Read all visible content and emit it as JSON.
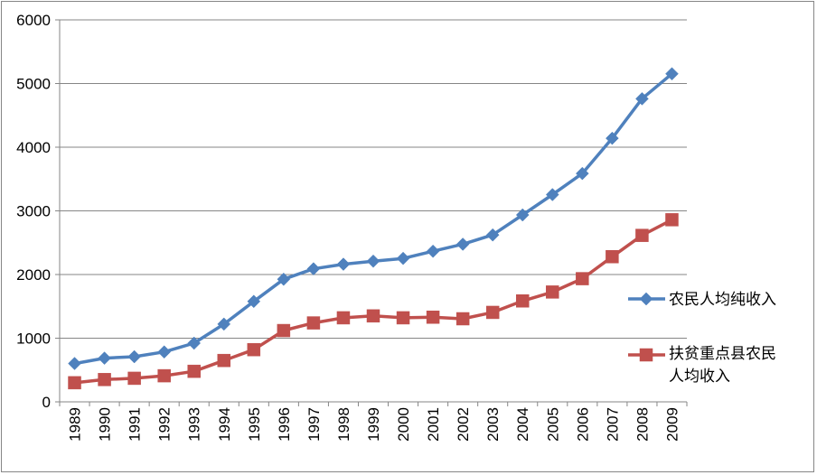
{
  "chart_data": {
    "type": "line",
    "title": "",
    "xlabel": "",
    "ylabel": "",
    "categories": [
      "1989",
      "1990",
      "1991",
      "1992",
      "1993",
      "1994",
      "1995",
      "1996",
      "1997",
      "1998",
      "1999",
      "2000",
      "2001",
      "2002",
      "2003",
      "2004",
      "2005",
      "2006",
      "2007",
      "2008",
      "2009"
    ],
    "ylim": [
      0,
      6000
    ],
    "yticks": [
      "0",
      "1000",
      "2000",
      "3000",
      "4000",
      "5000",
      "6000"
    ],
    "grid": "horizontal",
    "legend_position": "right",
    "series": [
      {
        "name": "农民人均纯收入",
        "marker": "diamond",
        "color": "#4F81BD",
        "values": [
          602,
          686,
          709,
          784,
          922,
          1221,
          1578,
          1926,
          2090,
          2162,
          2210,
          2253,
          2366,
          2476,
          2622,
          2936,
          3255,
          3587,
          4140,
          4761,
          5153
        ]
      },
      {
        "name_lines": [
          "扶贫重点县农民",
          "人均收入"
        ],
        "marker": "square",
        "color": "#C0504D",
        "values": [
          300,
          350,
          370,
          410,
          480,
          650,
          820,
          1120,
          1240,
          1320,
          1350,
          1320,
          1330,
          1305,
          1405,
          1585,
          1725,
          1935,
          2280,
          2615,
          2860
        ]
      }
    ]
  }
}
